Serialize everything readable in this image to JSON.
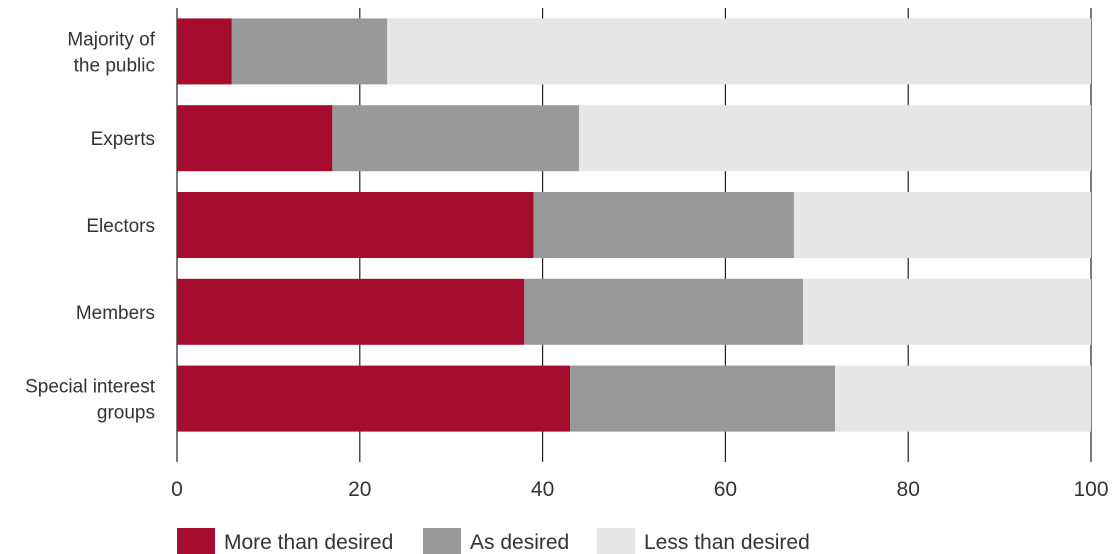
{
  "chart_data": {
    "type": "bar",
    "orientation": "horizontal",
    "stacked": true,
    "categories": [
      "Majority of\nthe public",
      "Experts",
      "Electors",
      "Members",
      "Special interest\ngroups"
    ],
    "series": [
      {
        "name": "More than desired",
        "color": "#a50c2d",
        "values": [
          6,
          17,
          39,
          38,
          43
        ]
      },
      {
        "name": "As desired",
        "color": "#999999",
        "values": [
          17,
          27,
          28.5,
          30.5,
          29
        ]
      },
      {
        "name": "Less than desired",
        "color": "#e6e6e6",
        "values": [
          77,
          56,
          32.5,
          31.5,
          28
        ]
      }
    ],
    "xticks": [
      "0",
      "20",
      "40",
      "60",
      "80",
      "100"
    ],
    "xlim": [
      0,
      100
    ],
    "grid": "vertical",
    "legend_position": "bottom-left"
  }
}
